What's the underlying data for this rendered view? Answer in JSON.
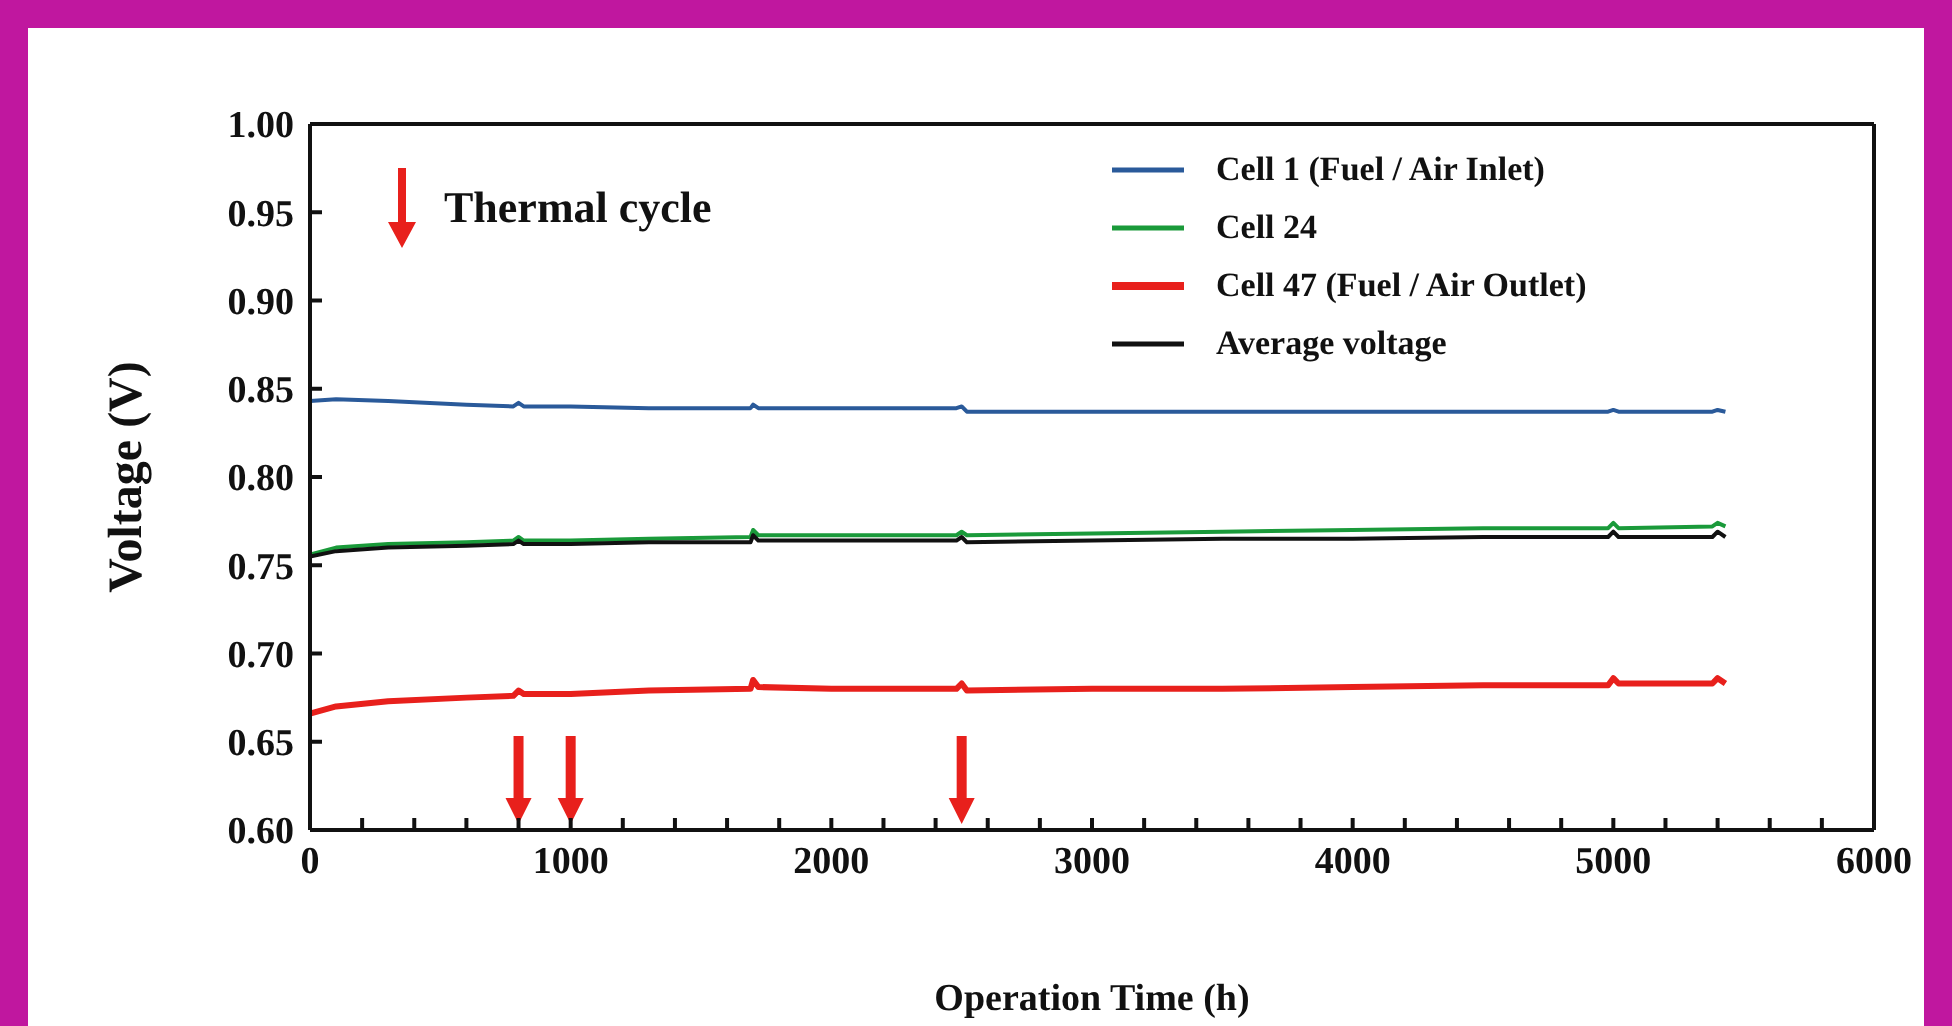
{
  "chart_data": {
    "type": "line",
    "xlabel": "Operation Time (h)",
    "ylabel": "Voltage (V)",
    "xlim": [
      0,
      6000
    ],
    "xticks": [
      0,
      {
        "value": 200,
        "label": null
      },
      {
        "value": 400,
        "label": null
      },
      {
        "value": 600,
        "label": null
      },
      {
        "value": 800,
        "label": null
      },
      1000,
      {
        "value": 1200,
        "label": null
      },
      {
        "value": 1400,
        "label": null
      },
      {
        "value": 1600,
        "label": null
      },
      {
        "value": 1800,
        "label": null
      },
      2000,
      {
        "value": 2200,
        "label": null
      },
      {
        "value": 2400,
        "label": null
      },
      {
        "value": 2600,
        "label": null
      },
      {
        "value": 2800,
        "label": null
      },
      3000,
      {
        "value": 3200,
        "label": null
      },
      {
        "value": 3400,
        "label": null
      },
      {
        "value": 3600,
        "label": null
      },
      {
        "value": 3800,
        "label": null
      },
      4000,
      {
        "value": 4200,
        "label": null
      },
      {
        "value": 4400,
        "label": null
      },
      {
        "value": 4600,
        "label": null
      },
      {
        "value": 4800,
        "label": null
      },
      5000,
      {
        "value": 5200,
        "label": null
      },
      {
        "value": 5400,
        "label": null
      },
      {
        "value": 5600,
        "label": null
      },
      {
        "value": 5800,
        "label": null
      },
      6000
    ],
    "ylim": [
      0.6,
      1.0
    ],
    "yticks": [
      {
        "value": 0.6,
        "label": "0.60"
      },
      0.65,
      {
        "value": 0.7,
        "label": "0.70"
      },
      0.75,
      {
        "value": 0.8,
        "label": "0.80"
      },
      0.85,
      {
        "value": 0.9,
        "label": "0.90"
      },
      0.95,
      {
        "value": 1.0,
        "label": "1.00"
      }
    ],
    "x": [
      0,
      100,
      300,
      600,
      780,
      800,
      820,
      1000,
      1300,
      1690,
      1700,
      1720,
      2000,
      2480,
      2500,
      2520,
      3000,
      3500,
      4000,
      4500,
      4980,
      5000,
      5020,
      5380,
      5400,
      5430
    ],
    "series": [
      {
        "name": "Cell 1 (Fuel / Air Inlet)",
        "color": "#2a5a9a",
        "values": [
          0.843,
          0.844,
          0.843,
          0.841,
          0.84,
          0.842,
          0.84,
          0.84,
          0.839,
          0.839,
          0.841,
          0.839,
          0.839,
          0.839,
          0.84,
          0.837,
          0.837,
          0.837,
          0.837,
          0.837,
          0.837,
          0.838,
          0.837,
          0.837,
          0.838,
          0.837
        ]
      },
      {
        "name": "Cell 24",
        "color": "#1a9a3a",
        "values": [
          0.756,
          0.76,
          0.762,
          0.763,
          0.764,
          0.766,
          0.764,
          0.764,
          0.765,
          0.766,
          0.77,
          0.767,
          0.767,
          0.767,
          0.769,
          0.767,
          0.768,
          0.769,
          0.77,
          0.771,
          0.771,
          0.774,
          0.771,
          0.772,
          0.774,
          0.772
        ]
      },
      {
        "name": "Cell 47 (Fuel / Air Outlet)",
        "color": "#e8201c",
        "values": [
          0.666,
          0.67,
          0.673,
          0.675,
          0.676,
          0.679,
          0.677,
          0.677,
          0.679,
          0.68,
          0.685,
          0.681,
          0.68,
          0.68,
          0.683,
          0.679,
          0.68,
          0.68,
          0.681,
          0.682,
          0.682,
          0.686,
          0.683,
          0.683,
          0.686,
          0.683
        ]
      },
      {
        "name": "Average voltage",
        "color": "#111111",
        "values": [
          0.755,
          0.758,
          0.76,
          0.761,
          0.762,
          0.764,
          0.762,
          0.762,
          0.763,
          0.763,
          0.767,
          0.764,
          0.764,
          0.764,
          0.766,
          0.763,
          0.764,
          0.765,
          0.765,
          0.766,
          0.766,
          0.769,
          0.766,
          0.766,
          0.769,
          0.766
        ]
      }
    ],
    "legend": "top right",
    "grid": false,
    "marker": "none",
    "line_style": "solid",
    "annotations": [
      "Thermal cycle"
    ],
    "ref_lines": [
      {
        "axis": "x",
        "value": 800,
        "color": "#e8201c"
      },
      {
        "axis": "x",
        "value": 1000,
        "color": "#e8201c"
      },
      {
        "axis": "x",
        "value": 2500,
        "color": "#e8201c"
      }
    ]
  }
}
